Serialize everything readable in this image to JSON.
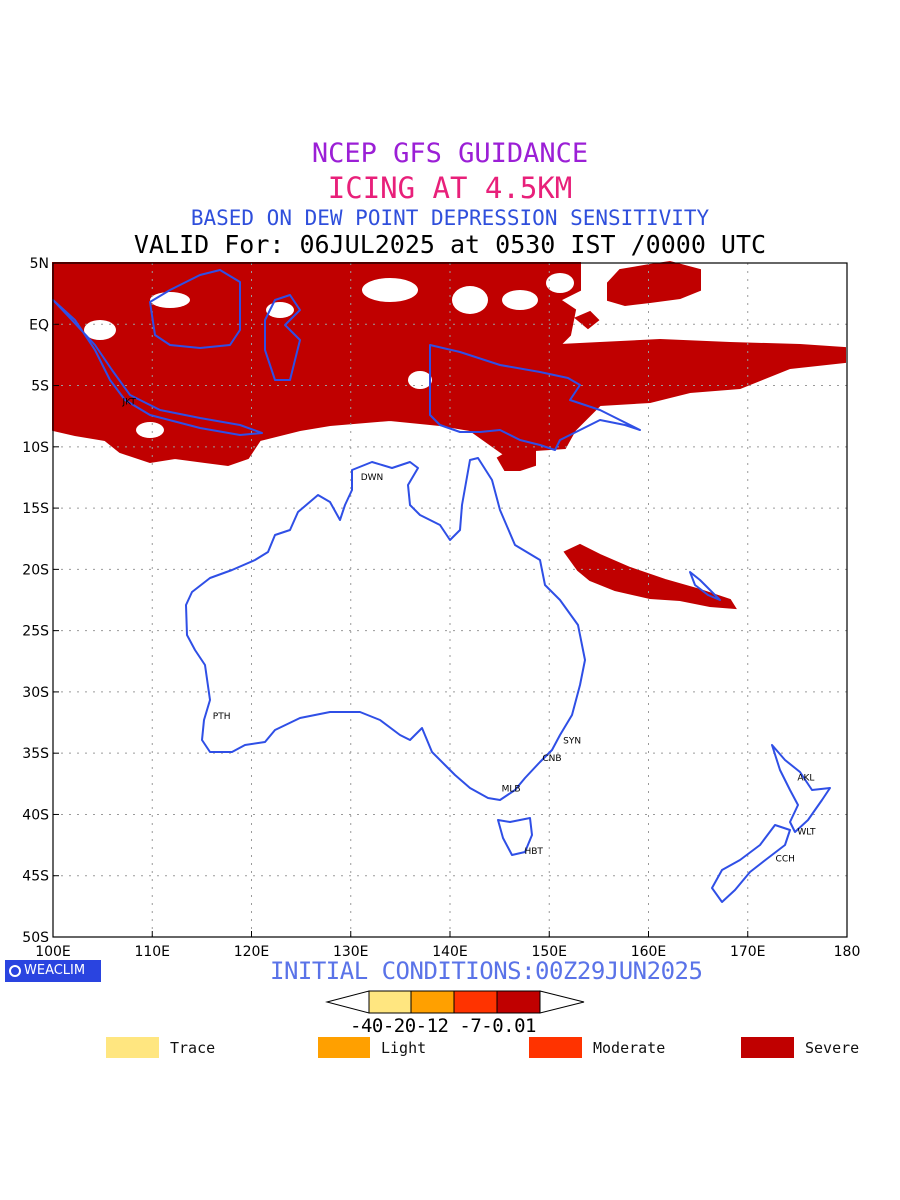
{
  "titles": {
    "line1": "NCEP GFS GUIDANCE",
    "line2": "ICING AT 4.5KM",
    "line3": "BASED ON DEW POINT DEPRESSION SENSITIVITY",
    "line4": "VALID For: 06JUL2025 at 0530 IST /0000 UTC"
  },
  "colors": {
    "trace": "#ffe680",
    "light": "#ffa000",
    "moderate": "#ff3300",
    "severe": "#c00000",
    "coast": "#2f4fe6",
    "grid": "#9a9a9a"
  },
  "axes": {
    "lon_labels": [
      "100E",
      "110E",
      "120E",
      "130E",
      "140E",
      "150E",
      "160E",
      "170E",
      "180"
    ],
    "lat_labels": [
      "5N",
      "EQ",
      "5S",
      "10S",
      "15S",
      "20S",
      "25S",
      "30S",
      "35S",
      "40S",
      "45S",
      "50S"
    ],
    "lon_range": [
      100,
      180
    ],
    "lat_range": [
      5,
      -50
    ]
  },
  "cities": [
    {
      "code": "JKT",
      "lon": 106.8,
      "lat": -6.2
    },
    {
      "code": "DWN",
      "lon": 130.8,
      "lat": -12.4
    },
    {
      "code": "PTH",
      "lon": 115.9,
      "lat": -31.9
    },
    {
      "code": "SYN",
      "lon": 151.2,
      "lat": -33.9
    },
    {
      "code": "CNB",
      "lon": 149.1,
      "lat": -35.3
    },
    {
      "code": "MLB",
      "lon": 145.0,
      "lat": -37.8
    },
    {
      "code": "HBT",
      "lon": 147.3,
      "lat": -42.9
    },
    {
      "code": "AKL",
      "lon": 174.8,
      "lat": -36.9
    },
    {
      "code": "WLT",
      "lon": 174.8,
      "lat": -41.3
    },
    {
      "code": "CCH",
      "lon": 172.6,
      "lat": -43.5
    }
  ],
  "footer": {
    "logo": "WEACLIM",
    "initial": "INITIAL CONDITIONS:00Z29JUN2025"
  },
  "colorbar": {
    "ticks": "-40-20-12 -7-0.01",
    "legend": [
      {
        "label": "Trace",
        "color": "#ffe680"
      },
      {
        "label": "Light",
        "color": "#ffa000"
      },
      {
        "label": "Moderate",
        "color": "#ff3300"
      },
      {
        "label": "Severe",
        "color": "#c00000"
      }
    ]
  }
}
